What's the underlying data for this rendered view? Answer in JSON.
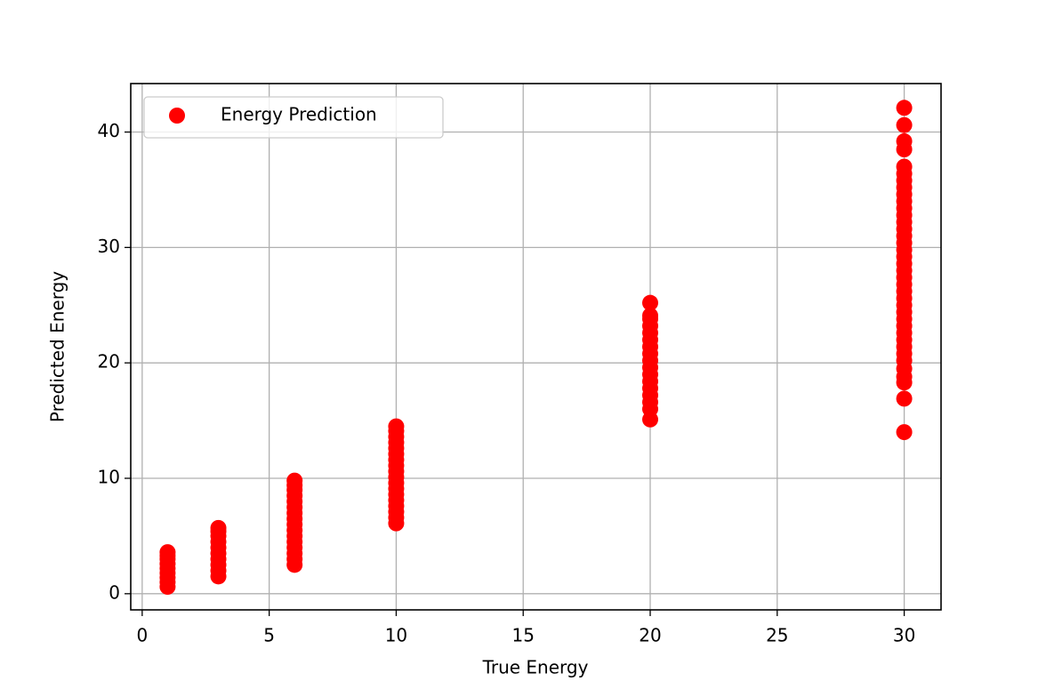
{
  "chart_data": {
    "type": "scatter",
    "xlabel": "True Energy",
    "ylabel": "Predicted Energy",
    "xlim": [
      -0.45,
      31.45
    ],
    "ylim": [
      -1.4,
      44.2
    ],
    "xticks": [
      0,
      5,
      10,
      15,
      20,
      25,
      30
    ],
    "yticks": [
      0,
      10,
      20,
      30,
      40
    ],
    "grid": true,
    "legend": "upper left",
    "series": [
      {
        "name": "Energy Prediction",
        "color": "#ff0000",
        "x": [
          1,
          1,
          1,
          1,
          1,
          1,
          1,
          1,
          1,
          3,
          3,
          3,
          3,
          3,
          3,
          3,
          3,
          3,
          3,
          6,
          6,
          6,
          6,
          6,
          6,
          6,
          6,
          6,
          6,
          6,
          6,
          6,
          6,
          6,
          6,
          10,
          10,
          10,
          10,
          10,
          10,
          10,
          10,
          10,
          10,
          10,
          10,
          10,
          10,
          10,
          10,
          10,
          10,
          20,
          20,
          20,
          20,
          20,
          20,
          20,
          20,
          20,
          20,
          20,
          20,
          20,
          20,
          20,
          20,
          20,
          30,
          30,
          30,
          30,
          30,
          30,
          30,
          30,
          30,
          30,
          30,
          30,
          30,
          30,
          30,
          30,
          30,
          30,
          30,
          30,
          30,
          30,
          30,
          30,
          30,
          30,
          30,
          30,
          30,
          30,
          30,
          30,
          30,
          30,
          30,
          30,
          30,
          30
        ],
        "values": [
          0.6,
          1.0,
          1.4,
          1.8,
          2.2,
          2.6,
          3.0,
          3.3,
          3.6,
          1.5,
          2.0,
          2.5,
          3.0,
          3.5,
          4.0,
          4.5,
          5.0,
          5.4,
          5.7,
          2.5,
          3.0,
          3.5,
          4.0,
          4.5,
          5.0,
          5.5,
          6.0,
          6.5,
          7.0,
          7.5,
          8.0,
          8.5,
          9.0,
          9.4,
          9.8,
          6.1,
          6.6,
          7.1,
          7.6,
          8.1,
          8.6,
          9.1,
          9.6,
          10.1,
          10.6,
          11.1,
          11.6,
          12.1,
          12.6,
          13.1,
          13.6,
          14.1,
          14.5,
          15.1,
          16.0,
          16.6,
          17.2,
          17.8,
          18.4,
          19.0,
          19.6,
          20.2,
          20.8,
          21.4,
          22.0,
          22.6,
          23.2,
          23.8,
          24.1,
          25.2,
          14.0,
          16.9,
          18.3,
          18.8,
          19.5,
          20.2,
          20.8,
          21.4,
          22.0,
          22.6,
          23.2,
          23.8,
          24.4,
          25.0,
          25.6,
          26.2,
          26.8,
          27.4,
          28.0,
          28.6,
          29.2,
          29.8,
          30.4,
          31.0,
          31.6,
          32.2,
          32.8,
          33.4,
          34.0,
          34.6,
          35.2,
          35.8,
          36.4,
          37.0,
          38.5,
          39.2,
          40.6,
          42.1
        ]
      }
    ]
  }
}
